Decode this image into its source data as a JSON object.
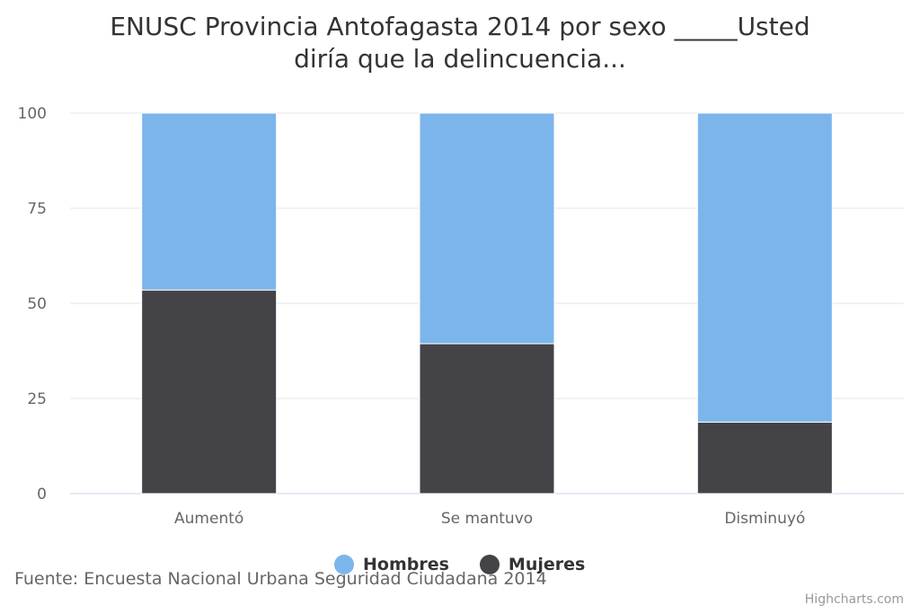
{
  "chart_data": {
    "type": "bar",
    "stacked": true,
    "stacking": "percent",
    "title": "ENUSC Provincia Antofagasta 2014 por sexo _____Usted diría que la delincuencia...",
    "title_lines": [
      "ENUSC Provincia Antofagasta 2014 por sexo _____Usted",
      "diría que la delincuencia..."
    ],
    "categories": [
      "Aumentó",
      "Se mantuvo",
      "Disminuyó"
    ],
    "series": [
      {
        "name": "Hombres",
        "color": "#7cb5ec",
        "values": [
          46.5,
          60.6,
          81.2
        ]
      },
      {
        "name": "Mujeres",
        "color": "#434348",
        "values": [
          53.5,
          39.4,
          18.8
        ]
      }
    ],
    "ylim": [
      0,
      100
    ],
    "yticks": [
      "0",
      "25",
      "50",
      "75",
      "100"
    ],
    "ytick_values": [
      0,
      25,
      50,
      75,
      100
    ],
    "xlabel": "",
    "ylabel": "",
    "grid": true,
    "legend": "bottom-center",
    "source": "Fuente: Encuesta Nacional Urbana Seguridad Ciudadana 2014",
    "credits": "Highcharts.com"
  }
}
